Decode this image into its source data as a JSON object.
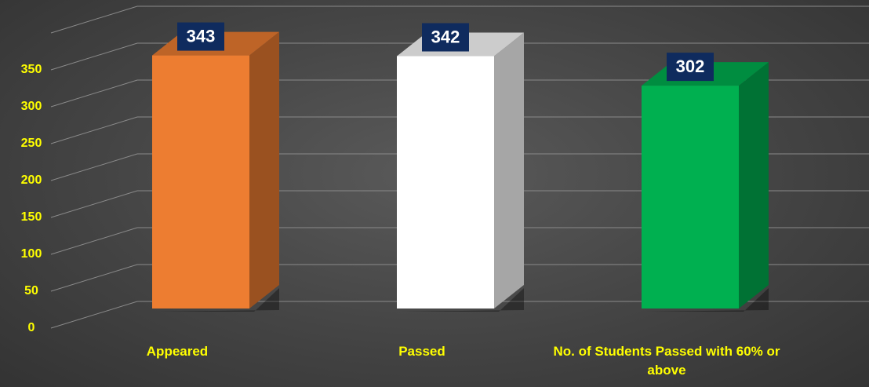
{
  "chart_data": {
    "type": "bar3d",
    "categories": [
      "Appeared",
      "Passed",
      "No. of Students Passed with 60% or above"
    ],
    "values": [
      343,
      342,
      302
    ],
    "colors": [
      "#ed7d31",
      "#ffffff",
      "#00b050"
    ],
    "ylim": [
      0,
      400
    ],
    "yticks": [
      0,
      50,
      100,
      150,
      200,
      250,
      300,
      350
    ],
    "grid": true
  }
}
